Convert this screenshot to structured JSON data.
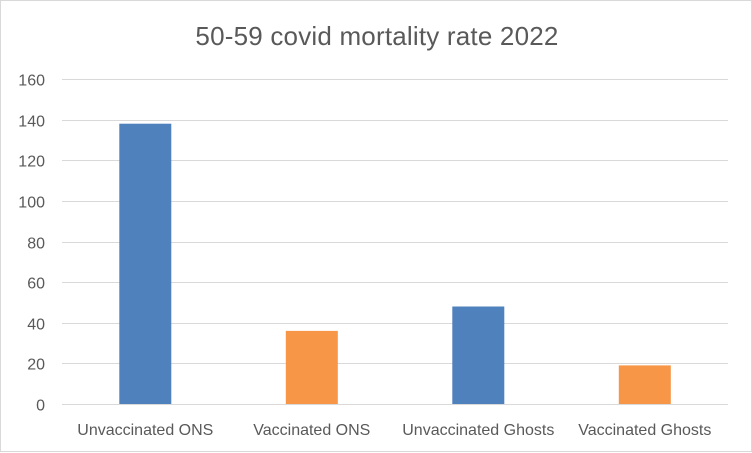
{
  "chart_data": {
    "type": "bar",
    "title": "50-59 covid mortality rate 2022",
    "categories": [
      "Unvaccinated ONS",
      "Vaccinated ONS",
      "Unvaccinated Ghosts",
      "Vaccinated Ghosts"
    ],
    "values": [
      138,
      36,
      48,
      19
    ],
    "bar_colors": [
      "#4f81bd",
      "#f79646",
      "#4f81bd",
      "#f79646"
    ],
    "ylim": [
      0,
      160
    ],
    "yticks": [
      0,
      20,
      40,
      60,
      80,
      100,
      120,
      140,
      160
    ],
    "grid": true,
    "legend": "none",
    "xlabel": "",
    "ylabel": ""
  }
}
